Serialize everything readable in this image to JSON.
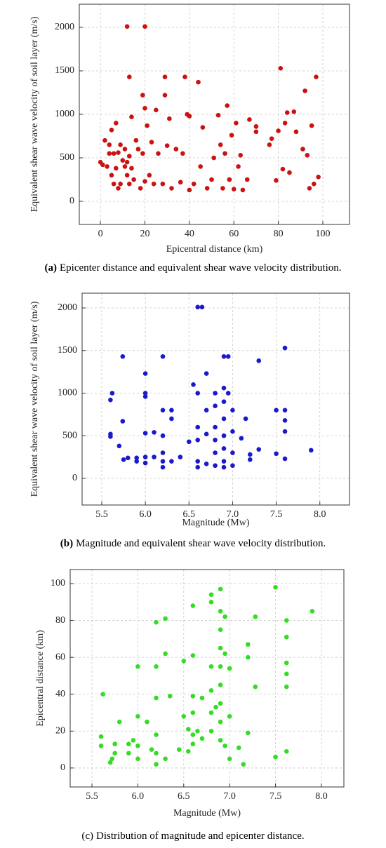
{
  "chart_data": [
    {
      "type": "scatter",
      "x_label": "Epicentral distance (km)",
      "y_label": "Equivalent shear wave velocity of soil layer (m/s)",
      "caption_label": "(a)",
      "caption_bold": true,
      "caption": "Epicenter distance and equivalent shear wave velocity distribution.",
      "color": "#cc1111",
      "grid": true,
      "xlim": [
        -9.5,
        112
      ],
      "xticks": [
        0,
        20,
        40,
        60,
        80,
        100
      ],
      "ylim": [
        -266,
        2266
      ],
      "yticks": [
        0,
        500,
        1000,
        1500,
        2000
      ],
      "x": [
        0,
        1,
        2,
        3,
        4,
        4,
        5,
        5,
        6,
        6,
        7,
        7,
        8,
        8,
        9,
        9,
        10,
        11,
        11,
        12,
        12,
        12,
        13,
        13,
        13,
        14,
        14,
        15,
        16,
        17,
        18,
        19,
        19,
        20,
        20,
        20,
        21,
        22,
        23,
        24,
        25,
        26,
        28,
        29,
        29,
        30,
        31,
        32,
        34,
        36,
        37,
        38,
        39,
        40,
        40,
        42,
        44,
        45,
        46,
        48,
        50,
        51,
        53,
        54,
        55,
        56,
        57,
        58,
        59,
        60,
        61,
        62,
        63,
        64,
        66,
        67,
        70,
        70,
        76,
        77,
        79,
        80,
        81,
        82,
        83,
        84,
        85,
        87,
        88,
        91,
        92,
        93,
        94,
        95,
        96,
        97,
        98
      ],
      "values": [
        450,
        420,
        700,
        400,
        650,
        550,
        820,
        300,
        550,
        200,
        900,
        380,
        150,
        560,
        200,
        650,
        470,
        400,
        600,
        2010,
        450,
        300,
        1430,
        200,
        520,
        970,
        380,
        250,
        700,
        600,
        150,
        1220,
        550,
        2010,
        1070,
        230,
        870,
        300,
        680,
        200,
        1050,
        550,
        200,
        1430,
        1220,
        640,
        950,
        150,
        600,
        220,
        550,
        1430,
        1000,
        130,
        980,
        200,
        1370,
        400,
        850,
        150,
        250,
        500,
        990,
        650,
        150,
        550,
        1100,
        250,
        760,
        140,
        900,
        400,
        530,
        130,
        250,
        940,
        800,
        860,
        650,
        720,
        240,
        810,
        1530,
        370,
        900,
        1020,
        330,
        1030,
        800,
        600,
        1270,
        530,
        150,
        870,
        200,
        1430,
        280
      ]
    },
    {
      "type": "scatter",
      "x_label": "Magnitude (Mw)",
      "y_label": "Equivalent shear wave velocity of soil layer (m/s)",
      "caption_label": "(b)",
      "caption_bold": true,
      "caption": "Magnitude and equivalent shear wave velocity distribution.",
      "color": "#1a1acc",
      "grid": true,
      "xlim": [
        5.275,
        8.34
      ],
      "xticks": [
        5.5,
        {
          "value": 6,
          "label": "6.0"
        },
        6.5,
        {
          "value": 7,
          "label": "7.0"
        },
        7.5,
        {
          "value": 8,
          "label": "8.0"
        }
      ],
      "ylim": [
        -313,
        2173
      ],
      "yticks": [
        0,
        500,
        1000,
        1500,
        2000
      ],
      "x": [
        5.6,
        5.6,
        5.6,
        5.62,
        5.7,
        5.74,
        5.74,
        5.75,
        5.8,
        5.9,
        5.9,
        6,
        6,
        6,
        6,
        6,
        6,
        6.1,
        6.1,
        6.2,
        6.2,
        6.2,
        6.2,
        6.2,
        6.2,
        6.3,
        6.3,
        6.3,
        6.4,
        6.5,
        6.55,
        6.6,
        6.65,
        6.6,
        6.6,
        6.6,
        6.6,
        6.6,
        6.7,
        6.7,
        6.7,
        6.7,
        6.8,
        6.8,
        6.8,
        6.8,
        6.8,
        6.8,
        6.9,
        6.9,
        6.9,
        6.9,
        6.9,
        6.9,
        6.9,
        6.9,
        6.95,
        6.95,
        7,
        7,
        7,
        7,
        7.1,
        7.15,
        7.2,
        7.2,
        7.3,
        7.3,
        7.5,
        7.5,
        7.6,
        7.6,
        7.6,
        7.6,
        7.6,
        7.9
      ],
      "values": [
        520,
        490,
        920,
        1000,
        380,
        1430,
        670,
        220,
        240,
        200,
        240,
        1230,
        1000,
        960,
        530,
        250,
        180,
        540,
        250,
        1430,
        800,
        500,
        300,
        130,
        200,
        800,
        700,
        200,
        250,
        430,
        1100,
        2010,
        2010,
        1000,
        600,
        450,
        200,
        130,
        1230,
        800,
        520,
        170,
        1000,
        850,
        600,
        450,
        300,
        150,
        1430,
        1060,
        900,
        700,
        500,
        350,
        200,
        130,
        1430,
        1000,
        800,
        550,
        300,
        150,
        470,
        700,
        280,
        220,
        1380,
        340,
        800,
        290,
        1530,
        800,
        680,
        550,
        230,
        330
      ]
    },
    {
      "type": "scatter",
      "x_label": "Magnitude (Mw)",
      "y_label": "Epicentral distance (km)",
      "caption_label": "(c)",
      "caption_bold": false,
      "caption": "Distribution of magnitude and epicenter distance.",
      "color": "#33dd22",
      "grid": true,
      "xlim": [
        5.263,
        8.245
      ],
      "xticks": [
        5.5,
        {
          "value": 6,
          "label": "6.0"
        },
        6.5,
        {
          "value": 7,
          "label": "7.0"
        },
        7.5,
        {
          "value": 8,
          "label": "8.0"
        }
      ],
      "ylim": [
        -10.3,
        107.6
      ],
      "yticks": [
        0,
        20,
        40,
        60,
        80,
        100
      ],
      "x": [
        5.6,
        5.6,
        5.62,
        5.7,
        5.72,
        5.75,
        5.75,
        5.8,
        5.9,
        5.9,
        5.95,
        6,
        6,
        6,
        6,
        6.1,
        6.15,
        6.2,
        6.2,
        6.2,
        6.2,
        6.2,
        6.2,
        6.3,
        6.3,
        6.3,
        6.35,
        6.45,
        6.5,
        6.5,
        6.55,
        6.55,
        6.6,
        6.6,
        6.6,
        6.6,
        6.6,
        6.6,
        6.65,
        6.7,
        6.7,
        6.8,
        6.8,
        6.8,
        6.8,
        6.8,
        6.8,
        6.85,
        6.9,
        6.9,
        6.9,
        6.9,
        6.9,
        6.9,
        6.9,
        6.9,
        6.9,
        6.95,
        6.95,
        6.95,
        7,
        7,
        7,
        7.1,
        7.15,
        7.2,
        7.2,
        7.2,
        7.28,
        7.28,
        7.5,
        7.5,
        7.62,
        7.62,
        7.62,
        7.62,
        7.62,
        7.62,
        7.9
      ],
      "values": [
        17,
        12,
        40,
        3,
        5,
        8,
        13,
        25,
        8,
        13,
        15,
        55,
        28,
        12,
        5,
        25,
        10,
        79,
        55,
        38,
        18,
        8,
        2,
        81,
        62,
        5,
        39,
        10,
        58,
        28,
        21,
        9,
        88,
        61,
        39,
        30,
        18,
        13,
        20,
        38,
        16,
        94,
        90,
        55,
        42,
        30,
        20,
        33,
        97,
        85,
        75,
        65,
        55,
        45,
        35,
        25,
        15,
        82,
        62,
        12,
        54,
        28,
        5,
        11,
        2,
        67,
        60,
        19,
        82,
        44,
        98,
        6,
        80,
        71,
        57,
        51,
        44,
        9,
        85
      ]
    }
  ]
}
